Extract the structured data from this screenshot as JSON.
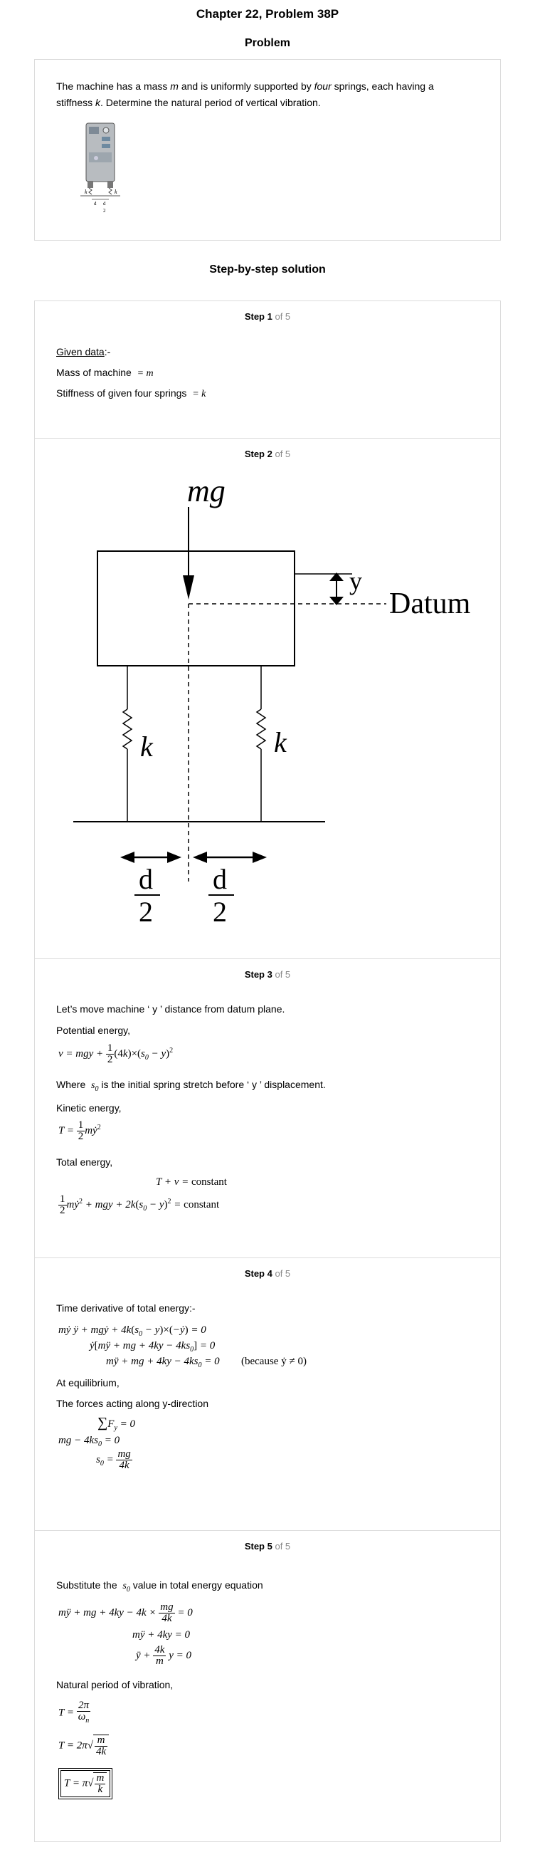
{
  "header": {
    "title": "Chapter 22, Problem 38P"
  },
  "problem": {
    "heading": "Problem",
    "line1_a": "The machine has a mass ",
    "line1_m": "m",
    "line1_b": " and is uniformly supported by ",
    "line1_four": "four",
    "line1_c": " springs, each having a",
    "line2_a": "stiffness ",
    "line2_k": "k",
    "line2_b": ". Determine the natural period of vertical vibration.",
    "figure_labels": {
      "k_left": "k",
      "k_right": "k",
      "d_left": "d",
      "d_right": "d",
      "two": "2"
    }
  },
  "solution": {
    "heading": "Step-by-step solution",
    "of_total": "of 5",
    "step1": {
      "label": "Step 1",
      "given": "Given data",
      "given_suffix": ":-",
      "mass_label": "Mass of machine",
      "mass_value": "= m",
      "stiffness_label": "Stiffness of given four springs",
      "stiffness_value": "= k"
    },
    "step2": {
      "label": "Step 2",
      "fig": {
        "mg": "mg",
        "y": "y",
        "datum": "Datum",
        "k1": "k",
        "k2": "k",
        "d1": "d",
        "d2": "d",
        "two1": "2",
        "two2": "2"
      }
    },
    "step3": {
      "label": "Step 3",
      "intro": "Let’s move machine ‘ y ’ distance from datum plane.",
      "pe_label": "Potential energy,",
      "where_a": "Where",
      "where_b": "is the initial spring stretch before ‘ y ’ displacement.",
      "ke_label": "Kinetic energy,",
      "total_label": "Total energy,"
    },
    "step4": {
      "label": "Step 4",
      "intro": "Time derivative of total energy:-",
      "because": "(because ẏ ≠ 0)",
      "eq_label": "At equilibrium,",
      "forces_label": "The forces acting along y-direction"
    },
    "step5": {
      "label": "Step 5",
      "intro_a": "Substitute the",
      "intro_b": "value in total energy equation",
      "period_label": "Natural period of vibration,"
    }
  }
}
